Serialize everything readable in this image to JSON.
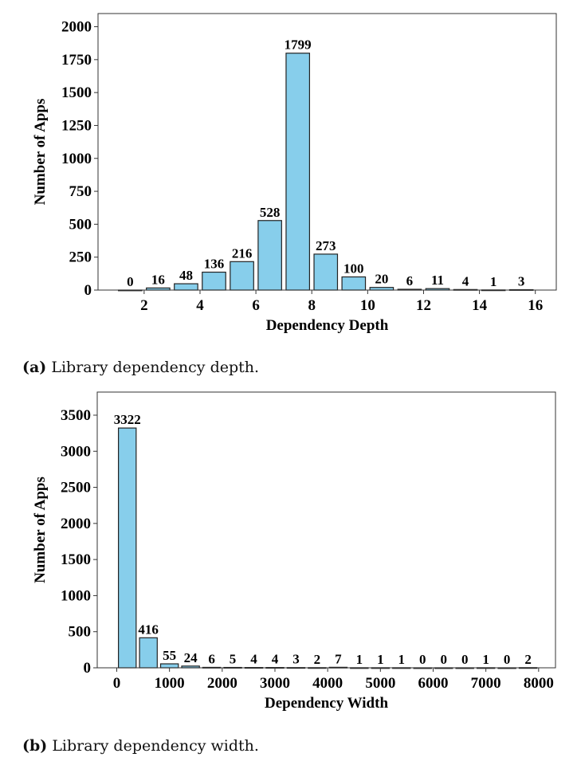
{
  "chart_data": [
    {
      "type": "bar",
      "xlabel": "Dependency Depth",
      "ylabel": "Number of Apps",
      "bin_starts": [
        1,
        2,
        3,
        4,
        5,
        6,
        7,
        8,
        9,
        10,
        11,
        12,
        13,
        14,
        15
      ],
      "bin_width": 1,
      "values": [
        0,
        16,
        48,
        136,
        216,
        528,
        1799,
        273,
        100,
        20,
        6,
        11,
        4,
        1,
        3
      ],
      "xticks": [
        2,
        4,
        6,
        8,
        10,
        12,
        14,
        16
      ],
      "yticks": [
        0,
        250,
        500,
        750,
        1000,
        1250,
        1500,
        1750,
        2000
      ],
      "xlim": [
        0.35,
        16.75
      ],
      "ylim": [
        0,
        2100
      ],
      "bar_color": "#87CEEB",
      "caption_label": "(a)",
      "caption": "Library dependency depth."
    },
    {
      "type": "bar",
      "xlabel": "Dependency Width",
      "ylabel": "Number of Apps",
      "bin_starts": [
        0,
        400,
        800,
        1200,
        1600,
        2000,
        2400,
        2800,
        3200,
        3600,
        4000,
        4400,
        4800,
        5200,
        5600,
        6000,
        6400,
        6800,
        7200,
        7600
      ],
      "bin_width": 400,
      "values": [
        3322,
        416,
        55,
        24,
        6,
        5,
        4,
        4,
        3,
        2,
        7,
        1,
        1,
        1,
        0,
        0,
        0,
        1,
        0,
        2
      ],
      "xticks": [
        0,
        1000,
        2000,
        3000,
        4000,
        5000,
        6000,
        7000,
        8000
      ],
      "yticks": [
        0,
        500,
        1000,
        1500,
        2000,
        2500,
        3000,
        3500
      ],
      "xlim": [
        -370,
        8320
      ],
      "ylim": [
        0,
        3820
      ],
      "bar_color": "#87CEEB",
      "caption_label": "(b)",
      "caption": "Library dependency width."
    }
  ]
}
